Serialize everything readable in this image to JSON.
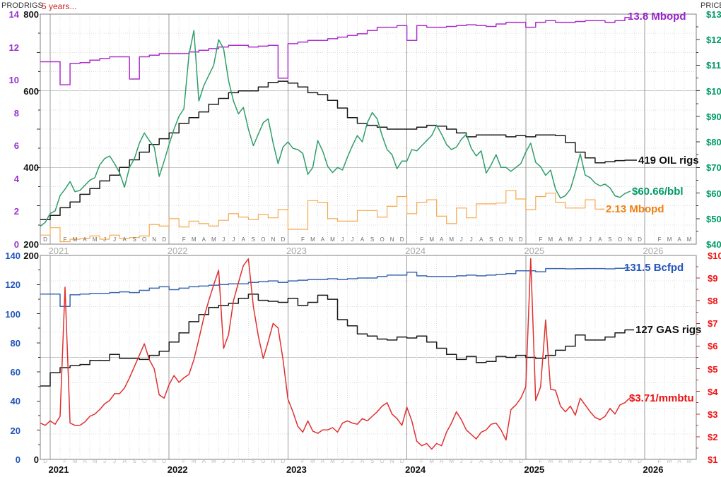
{
  "header": {
    "prod_axis_title": "PROD",
    "rigs_axis_title": "RIGS",
    "subtitle": "5 years...",
    "price_axis_title": "PRICE"
  },
  "timeline": {
    "start": "2020-12",
    "end": "2026-07",
    "unit": "month",
    "years": [
      "2021",
      "2022",
      "2023",
      "2024",
      "2025",
      "2026"
    ],
    "leading_month_letter": "D",
    "month_letters": [
      "F",
      "M",
      "A",
      "M",
      "J",
      "J",
      "A",
      "S",
      "O",
      "N",
      "D"
    ]
  },
  "chart_data": [
    {
      "type": "line",
      "panel": "oil",
      "axes": {
        "prod": {
          "label": "PROD",
          "range": [
            0,
            14
          ],
          "tick_values": [
            14,
            12,
            10,
            8,
            6,
            4,
            2,
            0
          ],
          "tick_labels": [
            "14",
            "12",
            "10",
            "8",
            "6",
            "4",
            "2",
            "0"
          ],
          "color": "#9933cc"
        },
        "rigs": {
          "label": "RIGS",
          "range": [
            200,
            800
          ],
          "tick_values": [
            800,
            600,
            400,
            200
          ],
          "tick_labels": [
            "800",
            "600",
            "400",
            "200"
          ],
          "color": "#111111"
        },
        "price": {
          "label": "PRICE",
          "range": [
            40,
            130
          ],
          "tick_values": [
            130,
            120,
            110,
            100,
            90,
            80,
            70,
            60,
            50,
            40
          ],
          "tick_labels": [
            "$130",
            "$120",
            "$110",
            "$100",
            "$90",
            "$80",
            "$70",
            "$60",
            "$50",
            "$40"
          ],
          "color": "#009a66"
        }
      },
      "series": [
        {
          "name": "us-oil-production",
          "label": "13.8 Mbopd",
          "axis": "prod",
          "style": "step",
          "color": "#ab30c9",
          "label_color": "#9922cc",
          "x_start": 0,
          "x_step": 1,
          "values": [
            11.1,
            11.1,
            9.7,
            11.0,
            11.05,
            11.2,
            11.3,
            11.4,
            11.4,
            10.05,
            11.4,
            11.5,
            11.6,
            11.6,
            11.6,
            11.7,
            11.8,
            11.9,
            12.0,
            12.1,
            12.1,
            12.0,
            12.05,
            12.1,
            10.1,
            12.2,
            12.3,
            12.4,
            12.4,
            12.5,
            12.6,
            12.7,
            12.8,
            13.0,
            13.2,
            13.2,
            13.3,
            12.4,
            13.3,
            13.2,
            13.2,
            13.25,
            13.3,
            13.35,
            13.3,
            13.25,
            13.4,
            13.5,
            13.5,
            13.2,
            13.5,
            13.6,
            13.5,
            13.5,
            13.55,
            13.6,
            13.6,
            13.5,
            13.6,
            13.8
          ]
        },
        {
          "name": "oil-rigs",
          "label": "419 OIL rigs",
          "axis": "rigs",
          "style": "step",
          "color": "#1a1a1a",
          "label_color": "#111111",
          "x_start": 0,
          "x_step": 1,
          "values": [
            264,
            275,
            295,
            310,
            330,
            345,
            365,
            380,
            400,
            420,
            440,
            460,
            475,
            490,
            515,
            530,
            545,
            565,
            580,
            595,
            600,
            600,
            610,
            622,
            625,
            620,
            610,
            595,
            590,
            575,
            555,
            530,
            515,
            510,
            505,
            500,
            500,
            500,
            505,
            510,
            508,
            500,
            490,
            480,
            485,
            485,
            485,
            480,
            483,
            480,
            485,
            485,
            483,
            465,
            440,
            425,
            412,
            415,
            418,
            419
          ]
        },
        {
          "name": "wti-oil-price",
          "label": "$60.66/bbl",
          "axis": "price",
          "style": "line",
          "color": "#2f9e6a",
          "label_color": "#009966",
          "x_start": 0,
          "x_step": 0.5,
          "values": [
            47,
            48.5,
            52,
            53,
            59,
            61.5,
            64.5,
            60.5,
            61,
            63,
            65,
            66,
            71,
            73.5,
            74.5,
            71.5,
            68,
            62.3,
            70,
            73.5,
            79.5,
            83.5,
            80.5,
            78,
            66.5,
            72.5,
            79,
            85,
            90,
            93,
            114,
            123.6,
            96,
            102,
            106,
            110,
            120,
            116.5,
            104,
            96,
            91,
            93.5,
            85,
            78.5,
            83,
            87.5,
            89,
            79.5,
            71.5,
            78,
            80,
            77.5,
            77,
            75.5,
            67.3,
            70,
            80.5,
            76.5,
            70.5,
            68,
            70,
            69,
            74,
            78.5,
            82.5,
            80,
            87.5,
            91.5,
            89,
            82.5,
            77,
            75,
            69.5,
            72.5,
            72.5,
            77,
            76.5,
            78.5,
            80.5,
            82.5,
            86.5,
            83,
            79,
            77,
            78,
            81,
            83,
            77.5,
            74.5,
            76.5,
            67.8,
            71,
            75,
            70,
            70,
            68.5,
            70,
            71.5,
            76,
            79.5,
            72,
            70.3,
            66.9,
            69,
            61.5,
            58,
            59,
            61.5,
            68,
            75.3,
            67,
            66,
            63.9,
            62.8,
            63.5,
            62,
            58.9,
            58.3,
            59.8,
            60.66
          ]
        },
        {
          "name": "new-oil-production",
          "label": "2.13 Mbopd",
          "axis": "prod",
          "style": "step",
          "color": "#f6a94e",
          "label_color": "#ee7f11",
          "x_start": 0,
          "x_step": 1,
          "values": [
            0.55,
            1.0,
            0.15,
            0.3,
            0.35,
            0.5,
            0.3,
            0.55,
            0.35,
            0.4,
            0.5,
            1.2,
            1.1,
            1.55,
            1.05,
            1.4,
            1.25,
            1.1,
            1.45,
            1.85,
            1.65,
            1.5,
            1.8,
            1.6,
            2.1,
            0.9,
            0.9,
            2.65,
            2.55,
            1.55,
            1.4,
            1.4,
            2.05,
            2.05,
            1.65,
            2.3,
            2.9,
            1.85,
            2.55,
            2.7,
            1.7,
            1.25,
            2.2,
            1.6,
            2.45,
            2.45,
            2.5,
            3.25,
            2.75,
            2.1,
            2.9,
            3.1,
            2.55,
            2.2,
            2.2,
            2.7,
            2.13
          ]
        }
      ]
    },
    {
      "type": "line",
      "panel": "gas",
      "axes": {
        "bcf": {
          "label": "",
          "range": [
            0,
            140
          ],
          "tick_values": [
            140,
            120,
            100,
            80,
            60,
            40,
            20,
            0
          ],
          "tick_labels": [
            "140",
            "120",
            "100",
            "80",
            "60",
            "40",
            "20",
            "0"
          ],
          "color": "#2255bb"
        },
        "rigs": {
          "label": "",
          "range": [
            0,
            200
          ],
          "tick_values": [
            200,
            0
          ],
          "tick_labels": [
            "200",
            "0"
          ],
          "color": "#111111"
        },
        "price": {
          "label": "",
          "range": [
            1,
            10
          ],
          "tick_values": [
            10,
            9,
            8,
            7,
            6,
            5,
            4,
            3,
            2,
            1
          ],
          "tick_labels": [
            "$10",
            "$9",
            "$8",
            "$7",
            "$6",
            "$5",
            "$4",
            "$3",
            "$2",
            "$1"
          ],
          "color": "#ee1111"
        }
      },
      "series": [
        {
          "name": "us-gas-production",
          "label": "131.5 Bcfpd",
          "axis": "bcf",
          "style": "step",
          "color": "#3c68b0",
          "label_color": "#2255bb",
          "x_start": 0,
          "x_step": 1,
          "values": [
            113.5,
            113.5,
            105,
            113,
            113.5,
            114,
            114,
            114.5,
            115,
            114.5,
            116,
            117.5,
            118.5,
            116.5,
            117.5,
            118.5,
            119,
            119.5,
            120,
            120.5,
            120.5,
            121.5,
            122,
            122.5,
            121.5,
            122.5,
            123,
            123.5,
            123.5,
            124,
            123.5,
            124,
            124.5,
            124.5,
            125.5,
            126.5,
            126.5,
            128.5,
            126,
            125.5,
            125.5,
            125.5,
            126,
            126.5,
            126,
            126.5,
            127,
            127.5,
            129.5,
            129.5,
            128.8,
            131,
            131,
            130.8,
            130.9,
            131,
            131,
            130.8,
            131.2,
            131.5
          ]
        },
        {
          "name": "gas-rigs",
          "label": "127 GAS rigs",
          "axis": "rigs",
          "style": "step",
          "color": "#1a1a1a",
          "label_color": "#111111",
          "x_start": 0,
          "x_step": 1,
          "values": [
            72,
            85,
            90,
            92,
            93,
            97,
            97,
            103,
            99,
            99,
            98,
            102,
            106,
            115,
            124,
            135,
            142,
            149,
            151,
            153,
            158,
            162,
            156,
            155,
            154,
            158,
            151,
            154,
            161,
            157,
            137,
            131,
            123,
            121,
            118,
            117,
            120,
            119,
            121,
            115,
            109,
            103,
            98,
            101,
            95,
            96,
            101,
            100,
            102,
            100,
            99,
            102,
            107,
            111,
            122,
            117,
            117,
            120,
            124,
            127
          ]
        },
        {
          "name": "henry-hub-gas-price",
          "label": "$3.71/mmbtu",
          "axis": "price",
          "style": "line",
          "color": "#e03030",
          "label_color": "#ee1111",
          "x_start": 0,
          "x_step": 0.5,
          "values": [
            2.6,
            2.5,
            2.7,
            2.55,
            2.9,
            8.6,
            2.6,
            2.5,
            2.5,
            2.65,
            2.9,
            3.0,
            3.2,
            3.45,
            3.6,
            3.9,
            3.9,
            4.15,
            4.6,
            5.1,
            5.6,
            6.1,
            5.4,
            5.0,
            3.85,
            3.7,
            4.3,
            4.7,
            4.4,
            4.6,
            4.75,
            5.4,
            6.3,
            7.25,
            8.0,
            8.7,
            9.35,
            5.9,
            6.5,
            8.0,
            8.8,
            9.55,
            9.85,
            7.75,
            6.45,
            5.45,
            6.2,
            7.0,
            6.8,
            5.4,
            3.65,
            3.1,
            2.45,
            2.2,
            2.7,
            2.25,
            2.15,
            2.3,
            2.3,
            2.4,
            2.2,
            2.6,
            2.7,
            2.6,
            2.55,
            2.8,
            2.7,
            2.9,
            3.1,
            3.35,
            3.5,
            3.0,
            2.8,
            2.5,
            3.3,
            2.7,
            1.8,
            1.6,
            1.7,
            1.45,
            1.7,
            1.6,
            2.2,
            2.6,
            3.1,
            2.75,
            2.3,
            2.1,
            1.9,
            2.2,
            2.3,
            2.55,
            2.6,
            2.3,
            1.85,
            3.2,
            3.4,
            3.7,
            4.2,
            9.86,
            3.6,
            4.2,
            7.15,
            4.1,
            4.05,
            3.35,
            3.1,
            3.35,
            2.95,
            3.7,
            3.4,
            3.1,
            2.85,
            2.75,
            2.9,
            3.25,
            3.0,
            3.4,
            3.5,
            3.71
          ]
        }
      ]
    }
  ]
}
